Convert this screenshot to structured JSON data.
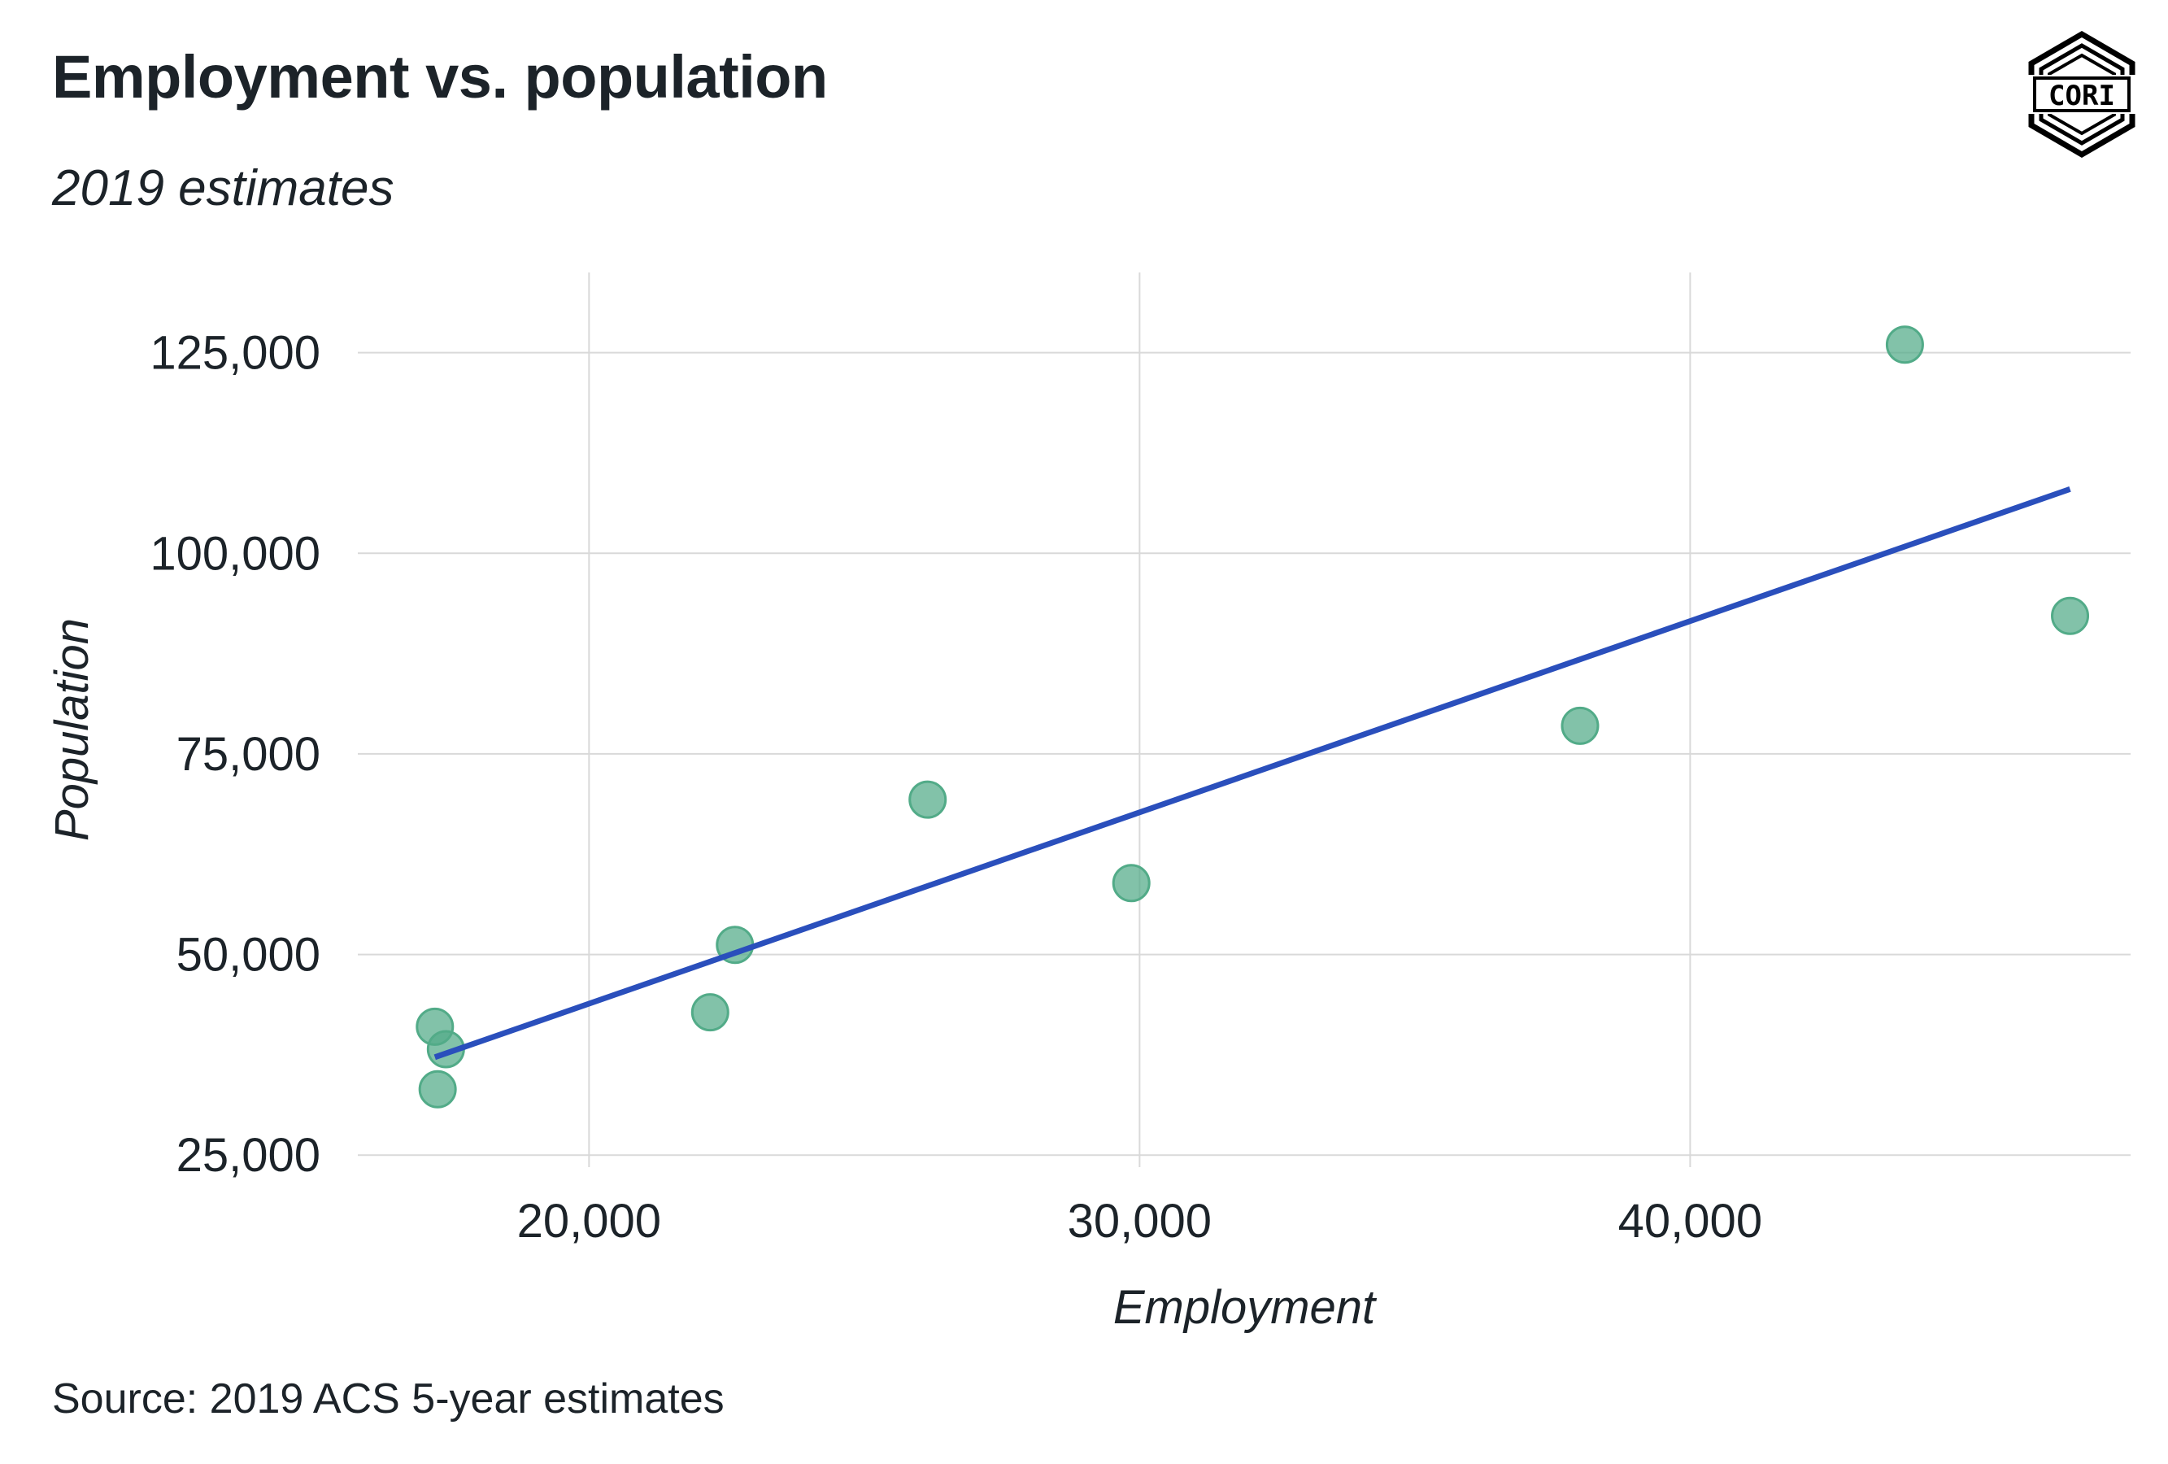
{
  "chart_data": {
    "type": "scatter",
    "title": "Employment vs. population",
    "subtitle": "2019 estimates",
    "xlabel": "Employment",
    "ylabel": "Population",
    "source": "Source: 2019 ACS 5-year estimates",
    "logo_text": "CORI",
    "xlim": [
      15800,
      48000
    ],
    "ylim": [
      23500,
      135000
    ],
    "x_ticks": [
      20000,
      30000,
      40000
    ],
    "x_tick_labels": [
      "20,000",
      "30,000",
      "40,000"
    ],
    "y_ticks": [
      25000,
      50000,
      75000,
      100000,
      125000
    ],
    "y_tick_labels": [
      "25,000",
      "50,000",
      "75,000",
      "100,000",
      "125,000"
    ],
    "grid": true,
    "points": [
      {
        "x": 17200,
        "y": 41000
      },
      {
        "x": 17400,
        "y": 38200
      },
      {
        "x": 17250,
        "y": 33200
      },
      {
        "x": 22200,
        "y": 42800
      },
      {
        "x": 22650,
        "y": 51200
      },
      {
        "x": 26150,
        "y": 69300
      },
      {
        "x": 29850,
        "y": 58900
      },
      {
        "x": 38000,
        "y": 78500
      },
      {
        "x": 43900,
        "y": 126000
      },
      {
        "x": 46900,
        "y": 92200
      }
    ],
    "trend_line": {
      "x": [
        17200,
        46900
      ],
      "y": [
        37200,
        108000
      ]
    },
    "colors": {
      "points": "#52ab88",
      "trend_line": "#2a4fbc",
      "grid": "#d9d9d9"
    }
  }
}
